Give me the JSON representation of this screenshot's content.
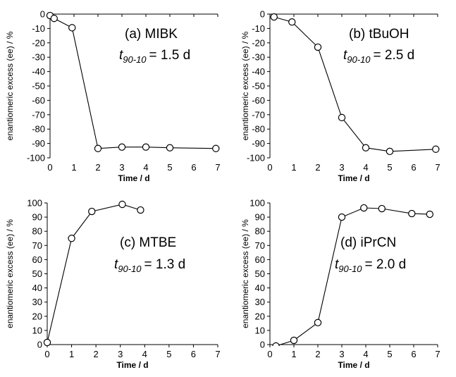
{
  "chart_data": [
    {
      "type": "line",
      "panel_label": "(a) MIBK",
      "t_value": "= 1.5 d",
      "xlabel": "Time / d",
      "ylabel": "enantiomeric excess (ee) / %",
      "xlim": [
        0,
        7
      ],
      "ylim": [
        -100,
        0
      ],
      "xticks": [
        0,
        1,
        2,
        3,
        4,
        5,
        6,
        7
      ],
      "yticks": [
        0,
        -10,
        -20,
        -30,
        -40,
        -50,
        -60,
        -70,
        -80,
        -90,
        -100
      ],
      "series": [
        {
          "x": [
            0.0,
            0.17,
            0.92,
            2.0,
            3.0,
            4.0,
            5.0,
            6.92
          ],
          "y": [
            -1,
            -3,
            -9.5,
            -93.5,
            -92.5,
            -92.5,
            -93,
            -93.5
          ]
        }
      ]
    },
    {
      "type": "line",
      "panel_label": "(b) tBuOH",
      "t_value": "= 2.5 d",
      "xlabel": "Time / d",
      "ylabel": "enantiomeric excess (ee) / %",
      "xlim": [
        0,
        7
      ],
      "ylim": [
        -100,
        0
      ],
      "xticks": [
        0,
        1,
        2,
        3,
        4,
        5,
        6,
        7
      ],
      "yticks": [
        0,
        -10,
        -20,
        -30,
        -40,
        -50,
        -60,
        -70,
        -80,
        -90,
        -100
      ],
      "series": [
        {
          "x": [
            0.17,
            0.92,
            2.0,
            3.0,
            4.0,
            5.0,
            6.92
          ],
          "y": [
            -2,
            -5.5,
            -23,
            -72,
            -93,
            -95.5,
            -94
          ]
        }
      ]
    },
    {
      "type": "line",
      "panel_label": "(c) MTBE",
      "t_value": "= 1.3 d",
      "xlabel": "Time / d",
      "ylabel": "enantiomeric excess (ee) / %",
      "xlim": [
        0,
        7
      ],
      "ylim": [
        0,
        100
      ],
      "xticks": [
        0,
        1,
        2,
        3,
        4,
        5,
        6,
        7
      ],
      "yticks": [
        0,
        10,
        20,
        30,
        40,
        50,
        60,
        70,
        80,
        90,
        100
      ],
      "series": [
        {
          "x": [
            0.0,
            1.0,
            1.83,
            3.08,
            3.83
          ],
          "y": [
            1.5,
            75,
            94,
            99,
            95
          ]
        }
      ]
    },
    {
      "type": "line",
      "panel_label": "(d) iPrCN",
      "t_value": "= 2.0 d",
      "xlabel": "Time / d",
      "ylabel": "enantiomeric excess (ee) / %",
      "xlim": [
        0,
        7
      ],
      "ylim": [
        0,
        100
      ],
      "xticks": [
        0,
        1,
        2,
        3,
        4,
        5,
        6,
        7
      ],
      "yticks": [
        0,
        10,
        20,
        30,
        40,
        50,
        60,
        70,
        80,
        90,
        100
      ],
      "series": [
        {
          "x": [
            0.25,
            1.0,
            2.0,
            3.0,
            3.92,
            4.67,
            5.92,
            6.67
          ],
          "y": [
            -1,
            3,
            15.5,
            90,
            96.5,
            96,
            92.5,
            92
          ]
        }
      ]
    }
  ]
}
